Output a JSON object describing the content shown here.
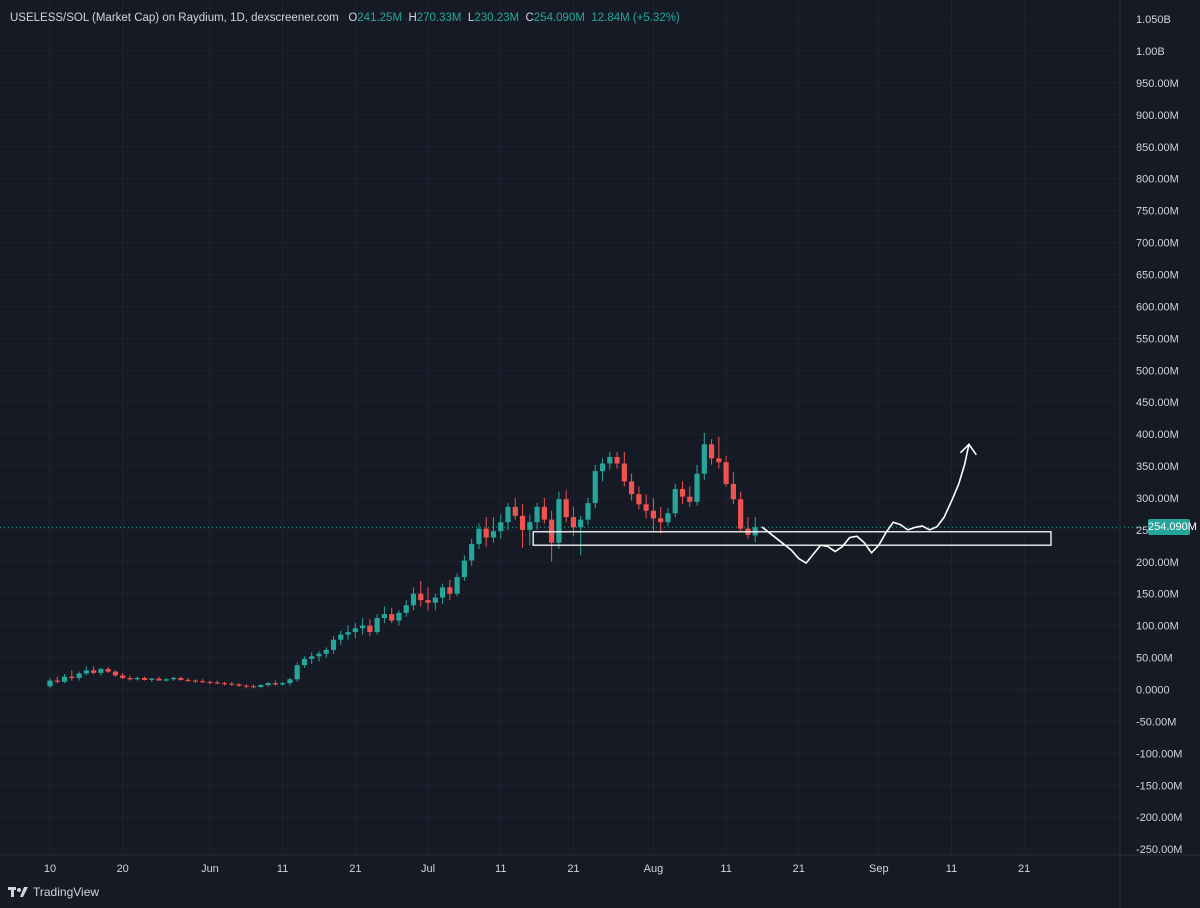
{
  "header": {
    "symbol": "USELESS/SOL (Market Cap) on Raydium, 1D, dexscreener.com",
    "o_label": "O",
    "o_value": "241.25M",
    "h_label": "H",
    "h_value": "270.33M",
    "l_label": "L",
    "l_value": "230.23M",
    "c_label": "C",
    "c_value": "254.090M",
    "change": "12.84M (+5.32%)"
  },
  "last_price_label": "254.090M",
  "brand": "TradingView",
  "colors": {
    "background": "#161a25",
    "up": "#26a69a",
    "down": "#ef5350",
    "axis_text": "#d1d4dc",
    "grid": "#1f2331",
    "drawing": "#ffffff"
  },
  "chart_data": {
    "type": "candlestick",
    "ylim": [
      -250,
      1050
    ],
    "y_tick_labels": [
      "-250.00M",
      "-200.00M",
      "-150.00M",
      "-100.00M",
      "-50.00M",
      "0.0000",
      "50.00M",
      "100.00M",
      "150.00M",
      "200.00M",
      "250.00M",
      "300.00M",
      "350.00M",
      "400.00M",
      "450.00M",
      "500.00M",
      "550.00M",
      "600.00M",
      "650.00M",
      "700.00M",
      "750.00M",
      "800.00M",
      "850.00M",
      "900.00M",
      "950.00M",
      "1.00B",
      "1.050B"
    ],
    "y_tick_values": [
      -250,
      -200,
      -150,
      -100,
      -50,
      0,
      50,
      100,
      150,
      200,
      250,
      300,
      350,
      400,
      450,
      500,
      550,
      600,
      650,
      700,
      750,
      800,
      850,
      900,
      950,
      1000,
      1050
    ],
    "x_tick_labels": [
      "10",
      "20",
      "Jun",
      "11",
      "21",
      "Jul",
      "11",
      "21",
      "Aug",
      "11",
      "21",
      "Sep",
      "11",
      "21"
    ],
    "x_tick_days": [
      10,
      20,
      32,
      42,
      52,
      62,
      72,
      82,
      93,
      103,
      113,
      124,
      134,
      144
    ],
    "last_price": 254.09,
    "candles": [
      [
        10,
        5,
        18,
        3,
        14
      ],
      [
        11,
        14,
        20,
        10,
        12
      ],
      [
        12,
        12,
        24,
        10,
        20
      ],
      [
        13,
        20,
        30,
        14,
        18
      ],
      [
        14,
        18,
        28,
        14,
        25
      ],
      [
        15,
        25,
        36,
        22,
        30
      ],
      [
        16,
        30,
        36,
        24,
        26
      ],
      [
        17,
        26,
        34,
        22,
        32
      ],
      [
        18,
        32,
        36,
        26,
        28
      ],
      [
        19,
        28,
        30,
        20,
        22
      ],
      [
        20,
        22,
        26,
        16,
        18
      ],
      [
        21,
        18,
        22,
        14,
        16
      ],
      [
        22,
        16,
        20,
        14,
        18
      ],
      [
        23,
        18,
        20,
        14,
        15
      ],
      [
        24,
        15,
        18,
        12,
        17
      ],
      [
        25,
        17,
        20,
        14,
        14
      ],
      [
        26,
        14,
        18,
        12,
        16
      ],
      [
        27,
        16,
        20,
        14,
        18
      ],
      [
        28,
        18,
        20,
        14,
        15
      ],
      [
        29,
        15,
        18,
        12,
        14
      ],
      [
        30,
        14,
        16,
        10,
        13
      ],
      [
        31,
        13,
        16,
        10,
        12
      ],
      [
        32,
        12,
        14,
        8,
        11
      ],
      [
        33,
        11,
        14,
        8,
        10
      ],
      [
        34,
        10,
        12,
        6,
        9
      ],
      [
        35,
        9,
        12,
        6,
        8
      ],
      [
        36,
        8,
        10,
        4,
        6
      ],
      [
        37,
        6,
        8,
        2,
        5
      ],
      [
        38,
        5,
        8,
        2,
        4
      ],
      [
        39,
        4,
        8,
        2,
        7
      ],
      [
        40,
        7,
        12,
        4,
        10
      ],
      [
        41,
        10,
        14,
        6,
        8
      ],
      [
        42,
        8,
        12,
        6,
        10
      ],
      [
        43,
        10,
        18,
        6,
        16
      ],
      [
        44,
        16,
        42,
        12,
        38
      ],
      [
        45,
        38,
        52,
        34,
        48
      ],
      [
        46,
        48,
        58,
        40,
        52
      ],
      [
        47,
        52,
        60,
        44,
        56
      ],
      [
        48,
        56,
        66,
        50,
        62
      ],
      [
        49,
        62,
        84,
        56,
        78
      ],
      [
        50,
        78,
        92,
        70,
        86
      ],
      [
        51,
        86,
        100,
        78,
        90
      ],
      [
        52,
        90,
        104,
        80,
        96
      ],
      [
        53,
        96,
        112,
        86,
        100
      ],
      [
        54,
        100,
        110,
        84,
        90
      ],
      [
        55,
        90,
        118,
        86,
        112
      ],
      [
        56,
        112,
        130,
        104,
        118
      ],
      [
        57,
        118,
        128,
        104,
        108
      ],
      [
        58,
        108,
        124,
        100,
        120
      ],
      [
        59,
        120,
        140,
        114,
        132
      ],
      [
        60,
        132,
        160,
        124,
        150
      ],
      [
        61,
        150,
        170,
        130,
        140
      ],
      [
        62,
        140,
        160,
        124,
        136
      ],
      [
        63,
        136,
        150,
        124,
        144
      ],
      [
        64,
        144,
        166,
        134,
        160
      ],
      [
        65,
        160,
        172,
        140,
        150
      ],
      [
        66,
        150,
        182,
        146,
        176
      ],
      [
        67,
        176,
        210,
        170,
        202
      ],
      [
        68,
        202,
        236,
        194,
        228
      ],
      [
        69,
        228,
        260,
        220,
        252
      ],
      [
        70,
        252,
        270,
        224,
        238
      ],
      [
        71,
        238,
        270,
        230,
        248
      ],
      [
        72,
        248,
        274,
        236,
        262
      ],
      [
        73,
        262,
        292,
        250,
        286
      ],
      [
        74,
        286,
        300,
        266,
        272
      ],
      [
        75,
        272,
        290,
        222,
        250
      ],
      [
        76,
        250,
        274,
        226,
        262
      ],
      [
        77,
        262,
        292,
        250,
        286
      ],
      [
        78,
        286,
        300,
        260,
        266
      ],
      [
        79,
        266,
        280,
        200,
        230
      ],
      [
        80,
        230,
        310,
        220,
        298
      ],
      [
        81,
        298,
        312,
        262,
        270
      ],
      [
        82,
        270,
        286,
        240,
        254
      ],
      [
        83,
        254,
        272,
        210,
        266
      ],
      [
        84,
        266,
        300,
        258,
        292
      ],
      [
        85,
        292,
        352,
        284,
        342
      ],
      [
        86,
        342,
        362,
        326,
        354
      ],
      [
        87,
        354,
        372,
        344,
        364
      ],
      [
        88,
        364,
        372,
        346,
        354
      ],
      [
        89,
        354,
        372,
        318,
        326
      ],
      [
        90,
        326,
        338,
        296,
        306
      ],
      [
        91,
        306,
        318,
        282,
        290
      ],
      [
        92,
        290,
        306,
        268,
        280
      ],
      [
        93,
        280,
        300,
        248,
        268
      ],
      [
        94,
        268,
        286,
        244,
        262
      ],
      [
        95,
        262,
        284,
        256,
        276
      ],
      [
        96,
        276,
        322,
        270,
        314
      ],
      [
        97,
        314,
        326,
        290,
        302
      ],
      [
        98,
        302,
        318,
        286,
        294
      ],
      [
        99,
        294,
        352,
        288,
        338
      ],
      [
        100,
        338,
        402,
        328,
        384
      ],
      [
        101,
        384,
        392,
        352,
        362
      ],
      [
        102,
        362,
        396,
        346,
        356
      ],
      [
        103,
        356,
        366,
        318,
        322
      ],
      [
        104,
        322,
        340,
        290,
        298
      ],
      [
        105,
        298,
        310,
        248,
        252
      ],
      [
        106,
        252,
        270,
        236,
        242
      ],
      [
        107,
        241.25,
        270.33,
        230.23,
        254.09
      ]
    ],
    "annotations": {
      "support_zone_day_range": [
        107,
        147
      ],
      "support_zone_value_range": [
        226,
        247
      ],
      "projection_path": [
        [
          108,
          254
        ],
        [
          110,
          236
        ],
        [
          112,
          218
        ],
        [
          113,
          205
        ],
        [
          114,
          198
        ],
        [
          115,
          212
        ],
        [
          116,
          226
        ],
        [
          117,
          224
        ],
        [
          118,
          216
        ],
        [
          119,
          224
        ],
        [
          120,
          238
        ],
        [
          121,
          240
        ],
        [
          122,
          230
        ],
        [
          123,
          214
        ],
        [
          124,
          226
        ],
        [
          125,
          246
        ],
        [
          126,
          262
        ],
        [
          127,
          258
        ],
        [
          128,
          250
        ],
        [
          129,
          254
        ],
        [
          130,
          256
        ],
        [
          131,
          250
        ],
        [
          132,
          255
        ],
        [
          133,
          270
        ],
        [
          134,
          295
        ],
        [
          135,
          322
        ],
        [
          135.8,
          352
        ],
        [
          136.4,
          384
        ]
      ],
      "arrow_day": 136.4,
      "arrow_value": 384
    }
  }
}
